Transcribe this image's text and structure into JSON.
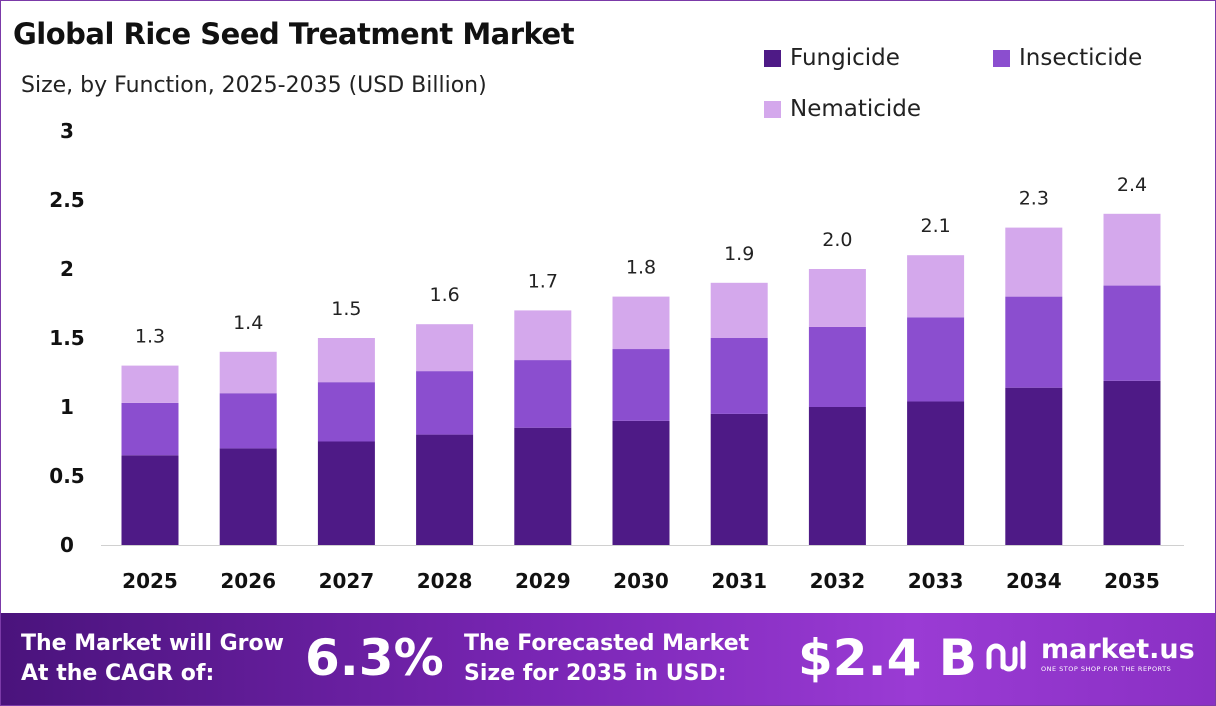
{
  "header": {
    "title": "Global Rice Seed Treatment Market",
    "subtitle": "Size, by Function, 2025-2035 (USD Billion)"
  },
  "legend": [
    {
      "label": "Fungicide",
      "color": "#4e1a86"
    },
    {
      "label": "Insecticide",
      "color": "#8b4ecf"
    },
    {
      "label": "Nematicide",
      "color": "#d4a8ec"
    }
  ],
  "chart_data": {
    "type": "bar",
    "stacked": true,
    "title": "Global Rice Seed Treatment Market",
    "subtitle": "Size, by Function, 2025-2035 (USD Billion)",
    "categories": [
      "2025",
      "2026",
      "2027",
      "2028",
      "2029",
      "2030",
      "2031",
      "2032",
      "2033",
      "2034",
      "2035"
    ],
    "series": [
      {
        "name": "Fungicide",
        "color": "#4e1a86",
        "values": [
          0.65,
          0.7,
          0.75,
          0.8,
          0.85,
          0.9,
          0.95,
          1.0,
          1.04,
          1.14,
          1.19
        ]
      },
      {
        "name": "Insecticide",
        "color": "#8b4ecf",
        "values": [
          0.38,
          0.4,
          0.43,
          0.46,
          0.49,
          0.52,
          0.55,
          0.58,
          0.61,
          0.66,
          0.69
        ]
      },
      {
        "name": "Nematicide",
        "color": "#d4a8ec",
        "values": [
          0.27,
          0.3,
          0.32,
          0.34,
          0.36,
          0.38,
          0.4,
          0.42,
          0.45,
          0.5,
          0.52
        ]
      }
    ],
    "totals": [
      "1.3",
      "1.4",
      "1.5",
      "1.6",
      "1.7",
      "1.8",
      "1.9",
      "2.0",
      "2.1",
      "2.3",
      "2.4"
    ],
    "ylim": [
      0,
      3
    ],
    "yticks": [
      "0",
      "0.5",
      "1",
      "1.5",
      "2",
      "2.5",
      "3"
    ],
    "grid": false,
    "legend_position": "top-right"
  },
  "footer": {
    "cagr_label_line1": "The Market will Grow",
    "cagr_label_line2": "At the CAGR of:",
    "cagr_value": "6.3%",
    "forecast_label_line1": "The Forecasted Market",
    "forecast_label_line2": "Size for 2035 in USD:",
    "forecast_value": "$2.4 B",
    "brand_name": "market.us",
    "brand_tagline": "ONE STOP SHOP FOR THE REPORTS"
  }
}
